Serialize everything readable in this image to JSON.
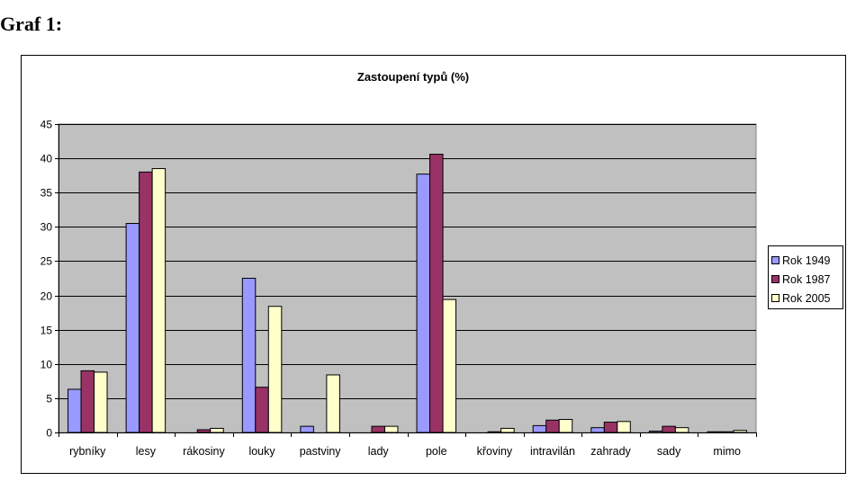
{
  "page": {
    "heading": "Graf 1:"
  },
  "chart_data": {
    "type": "bar",
    "title": "Zastoupení typů (%)",
    "xlabel": "",
    "ylabel": "",
    "ylim": [
      0,
      45
    ],
    "yticks": [
      0,
      5,
      10,
      15,
      20,
      25,
      30,
      35,
      40,
      45
    ],
    "grid": true,
    "legend_position": "right",
    "plot_background": "#C0C0C0",
    "categories": [
      "rybníky",
      "lesy",
      "rákosiny",
      "louky",
      "pastviny",
      "lady",
      "pole",
      "křoviny",
      "intravilán",
      "zahrady",
      "sady",
      "mimo"
    ],
    "series": [
      {
        "name": "Rok 1949",
        "color": "#9999FF",
        "values": [
          6.3,
          30.5,
          0.0,
          22.5,
          0.9,
          0.0,
          37.7,
          0.0,
          1.0,
          0.7,
          0.2,
          0.1
        ]
      },
      {
        "name": "Rok 1987",
        "color": "#993366",
        "values": [
          9.0,
          38.0,
          0.4,
          6.6,
          0.0,
          0.9,
          40.6,
          0.1,
          1.8,
          1.5,
          0.9,
          0.1
        ]
      },
      {
        "name": "Rok 2005",
        "color": "#FFFFCC",
        "values": [
          8.8,
          38.5,
          0.6,
          18.4,
          8.4,
          0.9,
          19.4,
          0.6,
          1.9,
          1.6,
          0.7,
          0.3
        ]
      }
    ]
  }
}
